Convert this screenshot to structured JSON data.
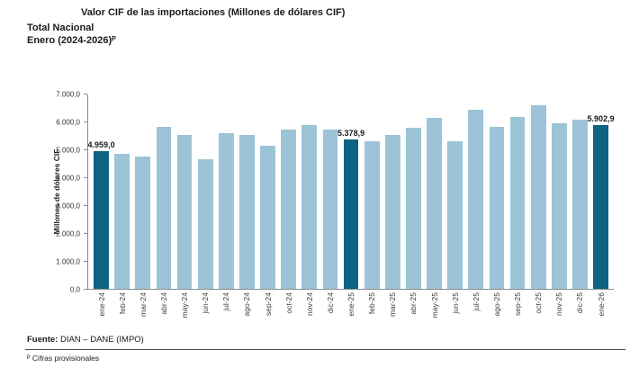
{
  "header": {
    "title": "Valor CIF de las importaciones (Millones de dólares CIF)",
    "subtitle_total": "Total Nacional",
    "subtitle_period": "Enero (2024-2026)ᴾ"
  },
  "chart_data": {
    "type": "bar",
    "title": "Valor CIF de las importaciones (Millones de dólares CIF)",
    "ylabel": "Millones de dólares CIF",
    "xlabel": "",
    "ylim": [
      0,
      7000
    ],
    "ytick_step": 1000,
    "ytick_labels": [
      "0,0",
      "1.000,0",
      "2.000,0",
      "3.000,0",
      "4.000,0",
      "5.000,0",
      "6.000,0",
      "7.000,0"
    ],
    "grid": false,
    "legend": false,
    "categories": [
      "ene-24",
      "feb-24",
      "mar-24",
      "abr-24",
      "may-24",
      "jun-24",
      "jul-24",
      "ago-24",
      "sep-24",
      "oct-24",
      "nov-24",
      "dic-24",
      "ene-25",
      "feb-25",
      "mar-25",
      "abr-25",
      "may-25",
      "jun-25",
      "jul-25",
      "ago-25",
      "sep-25",
      "oct-25",
      "nov-25",
      "dic-25",
      "ene-26"
    ],
    "values": [
      4959.0,
      4850,
      4770,
      5850,
      5550,
      4660,
      5600,
      5550,
      5150,
      5750,
      5900,
      5750,
      5378.9,
      5300,
      5550,
      5800,
      6150,
      5300,
      6450,
      5850,
      6200,
      6600,
      5950,
      6100,
      5902.9
    ],
    "highlight_indices": [
      0,
      12,
      24
    ],
    "data_labels": [
      {
        "index": 0,
        "text": "4.959,0"
      },
      {
        "index": 12,
        "text": "5.378,9"
      },
      {
        "index": 24,
        "text": "5.902,9"
      }
    ],
    "colors": {
      "bar": "#9CC3D6",
      "highlight": "#0E6383"
    }
  },
  "footer": {
    "source_label": "Fuente:",
    "source_value": " DIAN – DANE (IMPO)",
    "note": "ᴾ Cifras provisionales"
  }
}
